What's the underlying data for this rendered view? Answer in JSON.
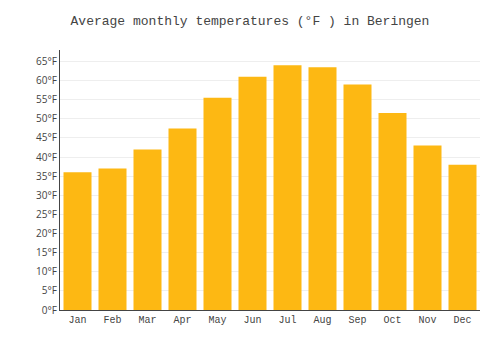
{
  "chart_data": {
    "type": "bar",
    "title": "Average monthly temperatures (°F ) in Beringen",
    "categories": [
      "Jan",
      "Feb",
      "Mar",
      "Apr",
      "May",
      "Jun",
      "Jul",
      "Aug",
      "Sep",
      "Oct",
      "Nov",
      "Dec"
    ],
    "values": [
      36,
      37,
      42,
      47.5,
      55.5,
      61,
      64,
      63.5,
      59,
      51.5,
      43,
      38
    ],
    "color": "#FDB813",
    "ylim": [
      0,
      68
    ],
    "yticks": [
      {
        "value": 0,
        "label": "0°F"
      },
      {
        "value": 5,
        "label": "5°F"
      },
      {
        "value": 10,
        "label": "10°F"
      },
      {
        "value": 15,
        "label": "15°F"
      },
      {
        "value": 20,
        "label": "20°F"
      },
      {
        "value": 25,
        "label": "25°F"
      },
      {
        "value": 30,
        "label": "30°F"
      },
      {
        "value": 35,
        "label": "35°F"
      },
      {
        "value": 40,
        "label": "40°F"
      },
      {
        "value": 45,
        "label": "45°F"
      },
      {
        "value": 50,
        "label": "50°F"
      },
      {
        "value": 55,
        "label": "55°F"
      },
      {
        "value": 60,
        "label": "60°F"
      },
      {
        "value": 65,
        "label": "65°F"
      }
    ],
    "grid": true
  }
}
